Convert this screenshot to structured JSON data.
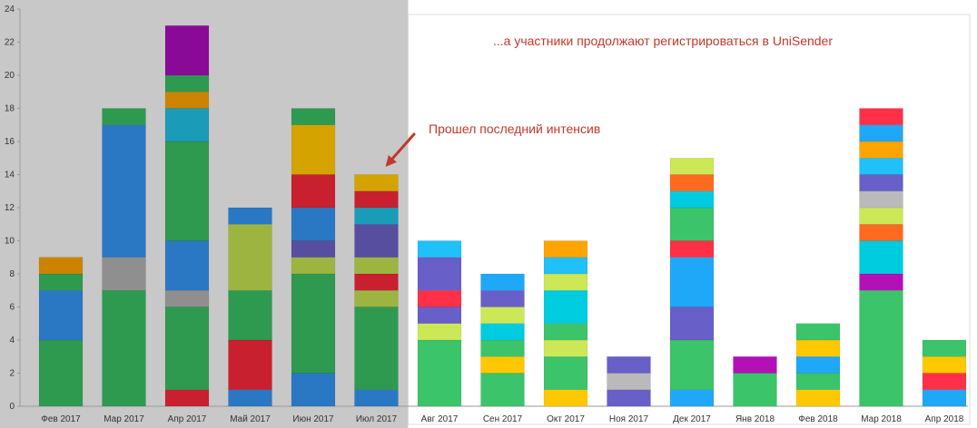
{
  "chart_data": {
    "type": "bar",
    "stacked": true,
    "ylim": [
      0,
      24
    ],
    "y_ticks": [
      0,
      2,
      4,
      6,
      8,
      10,
      12,
      14,
      16,
      18,
      20,
      22,
      24
    ],
    "grid": false,
    "highlight_region": {
      "categories_from": "Фев 2017",
      "categories_to": "Июл 2017",
      "background": "#c8c8c8"
    },
    "categories": [
      "Фев 2017",
      "Мар 2017",
      "Апр 2017",
      "Май 2017",
      "Июн 2017",
      "Июл 2017",
      "Авг 2017",
      "Сен 2017",
      "Окт 2017",
      "Ноя 2017",
      "Дек 2017",
      "Янв 2018",
      "Фев 2018",
      "Мар 2018",
      "Апр 2018"
    ],
    "bars": [
      [
        {
          "value": 4,
          "color": "#2e9a50"
        },
        {
          "value": 3,
          "color": "#2a78c4"
        },
        {
          "value": 1,
          "color": "#2e9a50"
        },
        {
          "value": 1,
          "color": "#cc8400"
        }
      ],
      [
        {
          "value": 7,
          "color": "#2e9a50"
        },
        {
          "value": 2,
          "color": "#8f8f8f"
        },
        {
          "value": 8,
          "color": "#2a78c4"
        },
        {
          "value": 1,
          "color": "#2e9a50"
        }
      ],
      [
        {
          "value": 1,
          "color": "#c8202e"
        },
        {
          "value": 5,
          "color": "#2e9a50"
        },
        {
          "value": 1,
          "color": "#8f8f8f"
        },
        {
          "value": 3,
          "color": "#2a78c4"
        },
        {
          "value": 6,
          "color": "#2e9a50"
        },
        {
          "value": 2,
          "color": "#1a9cb8"
        },
        {
          "value": 1,
          "color": "#cc8400"
        },
        {
          "value": 1,
          "color": "#2e9a50"
        },
        {
          "value": 3,
          "color": "#8a0a98"
        }
      ],
      [
        {
          "value": 1,
          "color": "#2a78c4"
        },
        {
          "value": 3,
          "color": "#c8202e"
        },
        {
          "value": 3,
          "color": "#2e9a50"
        },
        {
          "value": 4,
          "color": "#9db540"
        },
        {
          "value": 1,
          "color": "#2a78c4"
        }
      ],
      [
        {
          "value": 2,
          "color": "#2a78c4"
        },
        {
          "value": 6,
          "color": "#2e9a50"
        },
        {
          "value": 1,
          "color": "#9db540"
        },
        {
          "value": 1,
          "color": "#574ea0"
        },
        {
          "value": 2,
          "color": "#2a78c4"
        },
        {
          "value": 2,
          "color": "#c8202e"
        },
        {
          "value": 3,
          "color": "#d4a300"
        },
        {
          "value": 1,
          "color": "#2e9a50"
        }
      ],
      [
        {
          "value": 1,
          "color": "#2a78c4"
        },
        {
          "value": 5,
          "color": "#2e9a50"
        },
        {
          "value": 1,
          "color": "#9db540"
        },
        {
          "value": 1,
          "color": "#c8202e"
        },
        {
          "value": 1,
          "color": "#9db540"
        },
        {
          "value": 2,
          "color": "#574ea0"
        },
        {
          "value": 1,
          "color": "#1a9cb8"
        },
        {
          "value": 1,
          "color": "#c8202e"
        },
        {
          "value": 1,
          "color": "#d4a300"
        }
      ],
      [
        {
          "value": 4,
          "color": "#3cc46a"
        },
        {
          "value": 1,
          "color": "#cce856"
        },
        {
          "value": 1,
          "color": "#6860c8"
        },
        {
          "value": 1,
          "color": "#ff3048"
        },
        {
          "value": 2,
          "color": "#6860c8"
        },
        {
          "value": 1,
          "color": "#20c0f8"
        }
      ],
      [
        {
          "value": 2,
          "color": "#3cc46a"
        },
        {
          "value": 1,
          "color": "#ffc800"
        },
        {
          "value": 1,
          "color": "#3cc46a"
        },
        {
          "value": 1,
          "color": "#00cce0"
        },
        {
          "value": 1,
          "color": "#cce856"
        },
        {
          "value": 1,
          "color": "#6860c8"
        },
        {
          "value": 1,
          "color": "#20a8f8"
        }
      ],
      [
        {
          "value": 1,
          "color": "#ffc800"
        },
        {
          "value": 2,
          "color": "#3cc46a"
        },
        {
          "value": 1,
          "color": "#cce856"
        },
        {
          "value": 1,
          "color": "#3cc46a"
        },
        {
          "value": 2,
          "color": "#00cce0"
        },
        {
          "value": 1,
          "color": "#cce856"
        },
        {
          "value": 1,
          "color": "#20c0f8"
        },
        {
          "value": 1,
          "color": "#ffa400"
        }
      ],
      [
        {
          "value": 1,
          "color": "#6860c8"
        },
        {
          "value": 1,
          "color": "#bababa"
        },
        {
          "value": 1,
          "color": "#6860c8"
        }
      ],
      [
        {
          "value": 1,
          "color": "#20a8f8"
        },
        {
          "value": 3,
          "color": "#3cc46a"
        },
        {
          "value": 2,
          "color": "#6860c8"
        },
        {
          "value": 3,
          "color": "#20a8f8"
        },
        {
          "value": 1,
          "color": "#ff3048"
        },
        {
          "value": 2,
          "color": "#3cc46a"
        },
        {
          "value": 1,
          "color": "#00cce0"
        },
        {
          "value": 1,
          "color": "#ff6a20"
        },
        {
          "value": 1,
          "color": "#cce856"
        }
      ],
      [
        {
          "value": 2,
          "color": "#3cc46a"
        },
        {
          "value": 1,
          "color": "#b410b8"
        }
      ],
      [
        {
          "value": 1,
          "color": "#ffc800"
        },
        {
          "value": 1,
          "color": "#3cc46a"
        },
        {
          "value": 1,
          "color": "#20a8f8"
        },
        {
          "value": 1,
          "color": "#ffc800"
        },
        {
          "value": 1,
          "color": "#3cc46a"
        }
      ],
      [
        {
          "value": 7,
          "color": "#3cc46a"
        },
        {
          "value": 1,
          "color": "#b410b8"
        },
        {
          "value": 2,
          "color": "#00cce0"
        },
        {
          "value": 1,
          "color": "#ff6a20"
        },
        {
          "value": 1,
          "color": "#cce856"
        },
        {
          "value": 1,
          "color": "#bababa"
        },
        {
          "value": 1,
          "color": "#6860c8"
        },
        {
          "value": 1,
          "color": "#20c0f8"
        },
        {
          "value": 1,
          "color": "#ffa400"
        },
        {
          "value": 1,
          "color": "#20a8f8"
        },
        {
          "value": 1,
          "color": "#ff3048"
        }
      ],
      [
        {
          "value": 1,
          "color": "#20a8f8"
        },
        {
          "value": 1,
          "color": "#ff3048"
        },
        {
          "value": 1,
          "color": "#ffc800"
        },
        {
          "value": 1,
          "color": "#3cc46a"
        }
      ]
    ],
    "annotations": {
      "top_text": "...а участники продолжают регистрироваться в UniSender",
      "arrow_text": "Прошел последний интенсив",
      "arrow_target_category": "Июл 2017",
      "color": "#c0392b"
    }
  }
}
